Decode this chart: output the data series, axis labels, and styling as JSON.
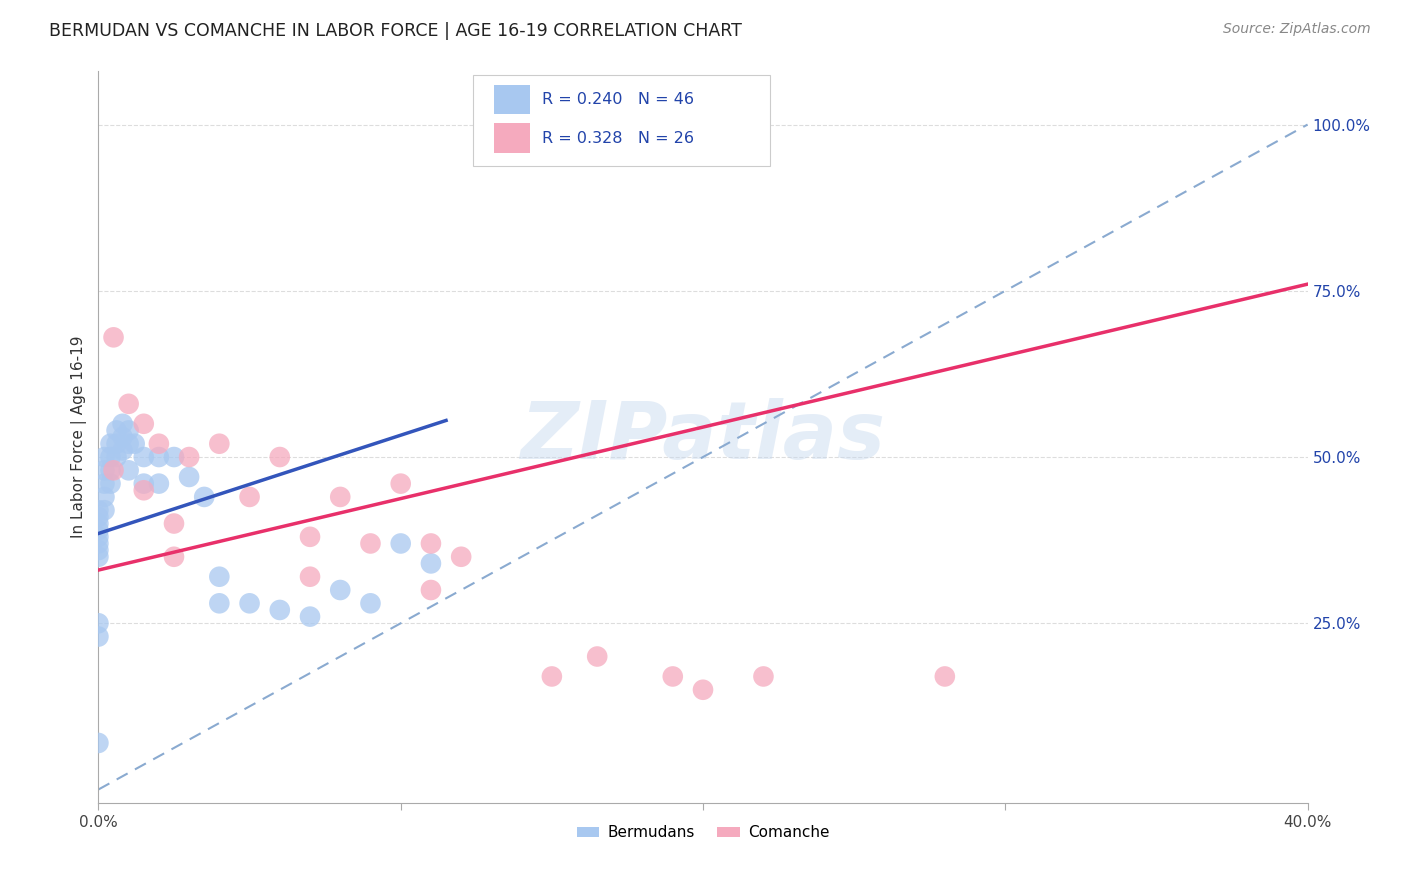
{
  "title": "BERMUDAN VS COMANCHE IN LABOR FORCE | AGE 16-19 CORRELATION CHART",
  "source": "Source: ZipAtlas.com",
  "ylabel": "In Labor Force | Age 16-19",
  "xlim": [
    0.0,
    0.4
  ],
  "ylim": [
    -0.02,
    1.08
  ],
  "blue_color": "#A8C8F0",
  "pink_color": "#F5AABE",
  "blue_line_color": "#3355BB",
  "pink_line_color": "#E8306A",
  "dashed_line_color": "#8AAAD0",
  "legend_text_color": "#2244AA",
  "blue_R": 0.24,
  "blue_N": 46,
  "pink_R": 0.328,
  "pink_N": 26,
  "watermark": "ZIPatlas",
  "bermudans_x": [
    0.0,
    0.0,
    0.0,
    0.0,
    0.0,
    0.0,
    0.0,
    0.0,
    0.002,
    0.002,
    0.002,
    0.002,
    0.002,
    0.004,
    0.004,
    0.004,
    0.004,
    0.006,
    0.006,
    0.006,
    0.008,
    0.008,
    0.008,
    0.01,
    0.01,
    0.01,
    0.012,
    0.015,
    0.015,
    0.02,
    0.02,
    0.025,
    0.03,
    0.035,
    0.04,
    0.04,
    0.05,
    0.06,
    0.07,
    0.08,
    0.09,
    0.1,
    0.11,
    0.0,
    0.0,
    0.0
  ],
  "bermudans_y": [
    0.42,
    0.41,
    0.4,
    0.39,
    0.38,
    0.37,
    0.36,
    0.35,
    0.5,
    0.48,
    0.46,
    0.44,
    0.42,
    0.52,
    0.5,
    0.48,
    0.46,
    0.54,
    0.52,
    0.5,
    0.55,
    0.53,
    0.51,
    0.54,
    0.52,
    0.48,
    0.52,
    0.5,
    0.46,
    0.5,
    0.46,
    0.5,
    0.47,
    0.44,
    0.32,
    0.28,
    0.28,
    0.27,
    0.26,
    0.3,
    0.28,
    0.37,
    0.34,
    0.25,
    0.23,
    0.07
  ],
  "comanche_x": [
    0.005,
    0.005,
    0.01,
    0.015,
    0.015,
    0.02,
    0.025,
    0.025,
    0.03,
    0.04,
    0.05,
    0.06,
    0.07,
    0.07,
    0.08,
    0.09,
    0.1,
    0.11,
    0.11,
    0.12,
    0.15,
    0.165,
    0.19,
    0.2,
    0.22,
    0.28
  ],
  "comanche_y": [
    0.68,
    0.48,
    0.58,
    0.55,
    0.45,
    0.52,
    0.4,
    0.35,
    0.5,
    0.52,
    0.44,
    0.5,
    0.38,
    0.32,
    0.44,
    0.37,
    0.46,
    0.37,
    0.3,
    0.35,
    0.17,
    0.2,
    0.17,
    0.15,
    0.17,
    0.17
  ],
  "pink_line_x0": 0.0,
  "pink_line_y0": 0.33,
  "pink_line_x1": 0.4,
  "pink_line_y1": 0.76,
  "blue_line_x0": 0.0,
  "blue_line_y0": 0.385,
  "blue_line_x1": 0.115,
  "blue_line_y1": 0.555,
  "dash_line_x0": 0.0,
  "dash_line_y0": 0.0,
  "dash_line_x1": 0.4,
  "dash_line_y1": 1.0
}
